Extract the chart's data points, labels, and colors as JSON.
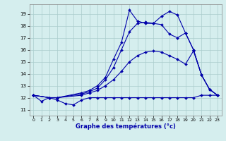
{
  "xlabel": "Graphe des températures (°c)",
  "background_color": "#d5eeee",
  "grid_color": "#aacccc",
  "line_color": "#0000aa",
  "x_ticks": [
    0,
    1,
    2,
    3,
    4,
    5,
    6,
    7,
    8,
    9,
    10,
    11,
    12,
    13,
    14,
    15,
    16,
    17,
    18,
    19,
    20,
    21,
    22,
    23
  ],
  "y_ticks": [
    11,
    12,
    13,
    14,
    15,
    16,
    17,
    18,
    19
  ],
  "xlim": [
    -0.5,
    23.5
  ],
  "ylim": [
    10.5,
    19.8
  ],
  "series": [
    {
      "x": [
        0,
        1,
        2,
        3,
        4,
        5,
        6,
        7,
        8,
        9,
        10,
        11,
        12,
        13,
        14,
        15,
        16,
        17,
        18,
        19,
        20,
        21,
        22,
        23
      ],
      "y": [
        12.2,
        11.7,
        12.0,
        11.8,
        11.5,
        11.4,
        11.8,
        12.0,
        12.0,
        12.0,
        12.0,
        12.0,
        12.0,
        12.0,
        12.0,
        12.0,
        12.0,
        12.0,
        12.0,
        12.0,
        12.0,
        12.2,
        12.2,
        12.2
      ]
    },
    {
      "x": [
        0,
        2,
        3,
        6,
        7,
        8,
        9,
        10,
        11,
        12,
        13,
        14,
        15,
        16,
        17,
        18,
        19,
        20,
        21,
        22,
        23
      ],
      "y": [
        12.2,
        12.0,
        12.0,
        12.2,
        12.4,
        12.6,
        13.0,
        13.5,
        14.2,
        15.0,
        15.5,
        15.8,
        15.9,
        15.8,
        15.5,
        15.2,
        14.8,
        15.9,
        13.9,
        12.7,
        12.2
      ]
    },
    {
      "x": [
        0,
        2,
        3,
        6,
        7,
        8,
        9,
        10,
        11,
        12,
        13,
        14,
        15,
        16,
        17,
        18,
        19,
        20,
        21,
        22,
        23
      ],
      "y": [
        12.2,
        12.0,
        12.0,
        12.3,
        12.5,
        12.8,
        13.5,
        14.5,
        16.0,
        17.5,
        18.2,
        18.3,
        18.2,
        18.1,
        17.3,
        17.0,
        17.4,
        16.0,
        13.9,
        12.7,
        12.2
      ]
    },
    {
      "x": [
        0,
        2,
        3,
        6,
        7,
        8,
        9,
        10,
        11,
        12,
        13,
        14,
        15,
        16,
        17,
        18,
        19,
        20,
        21,
        22,
        23
      ],
      "y": [
        12.2,
        12.0,
        12.0,
        12.4,
        12.6,
        13.0,
        13.7,
        15.2,
        16.6,
        19.3,
        18.4,
        18.2,
        18.2,
        18.8,
        19.2,
        18.9,
        17.4,
        16.0,
        13.9,
        12.7,
        12.2
      ]
    }
  ]
}
